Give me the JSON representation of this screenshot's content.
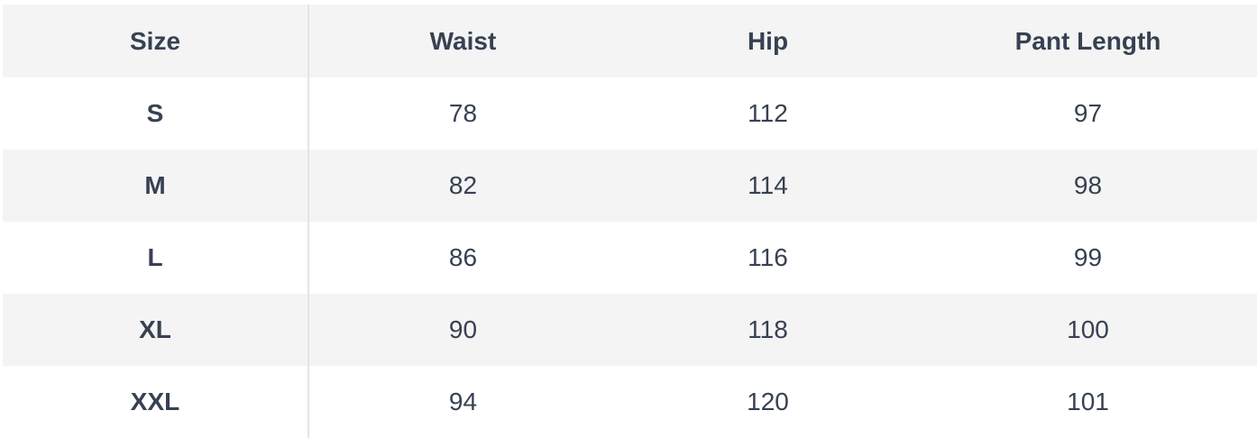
{
  "size_chart": {
    "header": {
      "size": "Size",
      "waist": "Waist",
      "hip": "Hip",
      "pant_length": "Pant Length"
    },
    "rows": [
      {
        "size": "S",
        "waist": "78",
        "hip": "112",
        "pant_length": "97"
      },
      {
        "size": "M",
        "waist": "82",
        "hip": "114",
        "pant_length": "98"
      },
      {
        "size": "L",
        "waist": "86",
        "hip": "116",
        "pant_length": "99"
      },
      {
        "size": "XL",
        "waist": "90",
        "hip": "118",
        "pant_length": "100"
      },
      {
        "size": "XXL",
        "waist": "94",
        "hip": "120",
        "pant_length": "101"
      }
    ]
  },
  "colors": {
    "stripe_background": "#f4f4f5",
    "row_background": "#ffffff",
    "text": "#374151",
    "column_divider": "#e4e4e7"
  },
  "chart_data": {
    "type": "table",
    "columns": [
      "Size",
      "Waist",
      "Hip",
      "Pant Length"
    ],
    "rows": [
      [
        "S",
        78,
        112,
        97
      ],
      [
        "M",
        82,
        114,
        98
      ],
      [
        "L",
        86,
        116,
        99
      ],
      [
        "XL",
        90,
        118,
        100
      ],
      [
        "XXL",
        94,
        120,
        101
      ]
    ]
  }
}
